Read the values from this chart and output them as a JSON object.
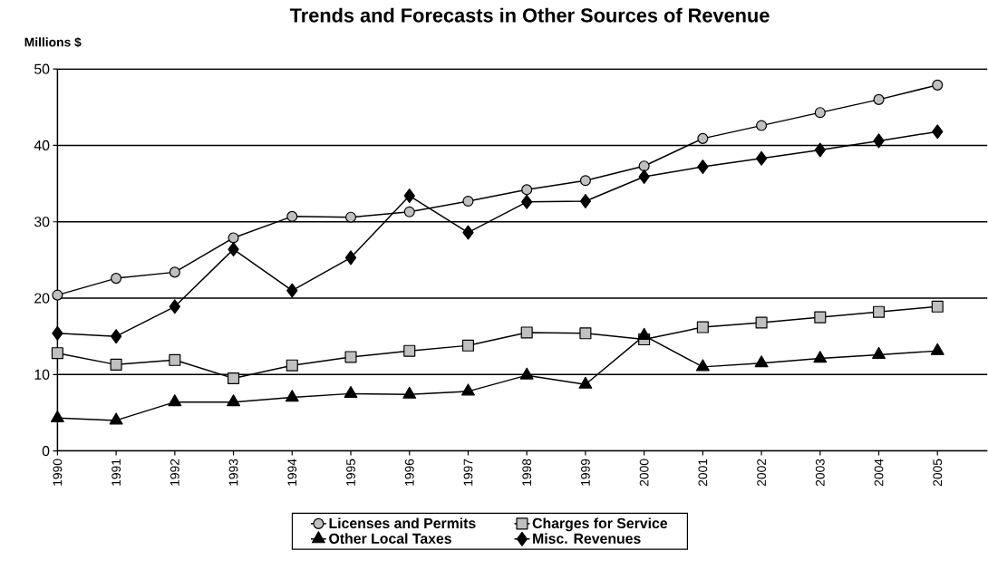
{
  "chart_data": {
    "type": "line",
    "title": "Trends and Forecasts in Other Sources of Revenue",
    "ylabel": "Millions $",
    "categories": [
      "1990",
      "1991",
      "1992",
      "1993",
      "1994",
      "1995",
      "1996",
      "1997",
      "1998",
      "1999",
      "2000",
      "2001",
      "2002",
      "2003",
      "2004",
      "2005"
    ],
    "ylim": [
      0,
      50
    ],
    "yticks": [
      0,
      10,
      20,
      30,
      40,
      50
    ],
    "grid": "y",
    "legend": "bottom",
    "line_style": "solid",
    "series": [
      {
        "name": "Licenses and Permits",
        "color": "#c0c0c0",
        "marker": "circle",
        "values": [
          20.4,
          22.6,
          23.4,
          27.9,
          30.7,
          30.6,
          31.3,
          32.7,
          34.2,
          35.4,
          37.3,
          40.9,
          42.6,
          44.3,
          46.0,
          47.9
        ]
      },
      {
        "name": "Charges for Service",
        "color": "#c0c0c0",
        "marker": "square",
        "values": [
          12.8,
          11.3,
          11.9,
          9.5,
          11.2,
          12.3,
          13.1,
          13.8,
          15.5,
          15.4,
          14.6,
          16.2,
          16.8,
          17.5,
          18.2,
          18.9
        ]
      },
      {
        "name": "Other Local Taxes",
        "color": "#000000",
        "marker": "triangle",
        "values": [
          4.3,
          4.0,
          6.4,
          6.4,
          7.0,
          7.5,
          7.4,
          7.8,
          9.9,
          8.7,
          15.1,
          11.0,
          11.5,
          12.1,
          12.6,
          13.1
        ]
      },
      {
        "name": "Misc. Revenues",
        "color": "#000000",
        "marker": "diamond",
        "values": [
          15.4,
          15.0,
          18.9,
          26.4,
          21.0,
          25.3,
          33.4,
          28.6,
          32.6,
          32.7,
          35.9,
          37.2,
          38.3,
          39.4,
          40.6,
          41.8
        ]
      }
    ]
  }
}
